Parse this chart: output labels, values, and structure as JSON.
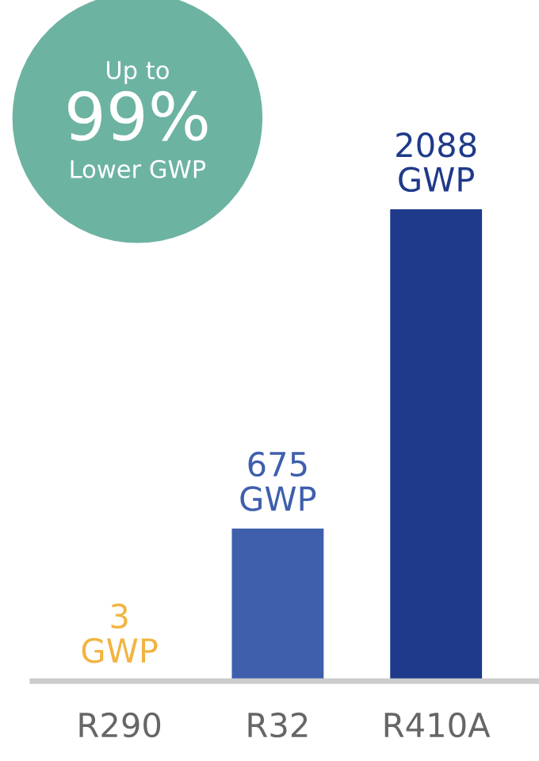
{
  "chart_data": {
    "type": "bar",
    "categories": [
      "R290",
      "R32",
      "R410A"
    ],
    "values": [
      3,
      675,
      2088
    ],
    "colors": [
      "#f2b441",
      "#3f5fad",
      "#1f3a8a"
    ],
    "value_labels": [
      "3\nGWP",
      "675\nGWP",
      "2088\nGWP"
    ],
    "annotations": [
      "Up to",
      "99%",
      "Lower GWP"
    ],
    "tick_labels": "x",
    "grid": false,
    "legend": false
  }
}
